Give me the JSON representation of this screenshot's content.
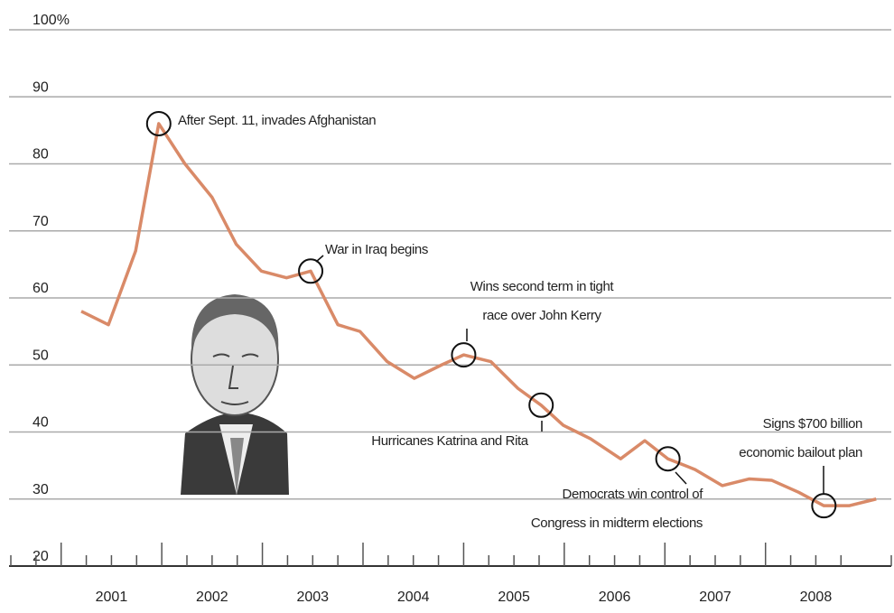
{
  "chart_data": {
    "type": "line",
    "x": [
      2001.2,
      2001.47,
      2001.74,
      2001.97,
      2002.23,
      2002.5,
      2002.74,
      2002.99,
      2003.24,
      2003.48,
      2003.75,
      2003.97,
      2004.24,
      2004.51,
      2004.78,
      2005.0,
      2005.27,
      2005.54,
      2005.77,
      2005.99,
      2006.26,
      2006.56,
      2006.8,
      2007.03,
      2007.3,
      2007.57,
      2007.84,
      2008.06,
      2008.33,
      2008.58,
      2008.83,
      2009.1
    ],
    "series": [
      {
        "color": "#d98a68",
        "values": [
          58,
          56,
          67,
          86,
          80,
          75,
          68,
          64,
          63,
          64,
          56,
          55,
          50.5,
          48,
          50,
          51.5,
          50.5,
          46.5,
          44,
          41,
          39,
          36,
          38.7,
          36,
          34.4,
          32,
          33,
          32.8,
          31,
          29,
          29,
          30
        ]
      }
    ],
    "xlim": [
      2000.5,
      2009.25
    ],
    "xticks": [
      2001,
      2002,
      2003,
      2004,
      2005,
      2006,
      2007,
      2008
    ],
    "ylim": [
      20,
      100
    ],
    "yticks": [
      20,
      30,
      40,
      50,
      60,
      70,
      80,
      90,
      {
        "value": 100,
        "label": "100%"
      }
    ],
    "grid": true,
    "annotations": [
      [
        "After Sept. 11, invades Afghanistan"
      ],
      [
        "War in Iraq begins"
      ],
      [
        "Wins second term in tight",
        "race over John Kerry"
      ],
      [
        "Hurricanes Katrina and Rita"
      ],
      [
        "Democrats win control of",
        "Congress in midterm elections"
      ],
      [
        "Signs $700 billion",
        "economic bailout plan"
      ]
    ]
  }
}
